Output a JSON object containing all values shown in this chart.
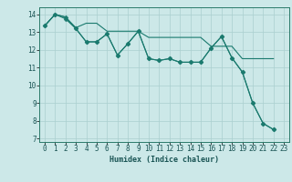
{
  "title": "",
  "xlabel": "Humidex (Indice chaleur)",
  "xlim": [
    -0.5,
    23.5
  ],
  "ylim": [
    6.8,
    14.4
  ],
  "xticks": [
    0,
    1,
    2,
    3,
    4,
    5,
    6,
    7,
    8,
    9,
    10,
    11,
    12,
    13,
    14,
    15,
    16,
    17,
    18,
    19,
    20,
    21,
    22,
    23
  ],
  "yticks": [
    7,
    8,
    9,
    10,
    11,
    12,
    13,
    14
  ],
  "bg_color": "#cce8e8",
  "grid_color": "#aacfcf",
  "line_color": "#1a7a6e",
  "line1_x": [
    0,
    1,
    2,
    3,
    4,
    5,
    6,
    7,
    8,
    9,
    10,
    11,
    12,
    13,
    14,
    15,
    16,
    17,
    18,
    19,
    20,
    21,
    22
  ],
  "line1_y": [
    13.35,
    14.0,
    13.85,
    13.2,
    12.45,
    12.45,
    12.9,
    11.7,
    12.35,
    13.05,
    11.5,
    11.4,
    11.5,
    11.3,
    11.3,
    11.3,
    12.1,
    12.75,
    11.55,
    10.75,
    9.0,
    7.85,
    7.5
  ],
  "line2_x": [
    0,
    1,
    2,
    3,
    4,
    5,
    6,
    7,
    8,
    9,
    10,
    11,
    12,
    13,
    14,
    15,
    16,
    17,
    18,
    19,
    20,
    21,
    22
  ],
  "line2_y": [
    13.35,
    14.0,
    13.85,
    13.25,
    13.5,
    13.5,
    13.05,
    13.05,
    13.05,
    13.05,
    12.7,
    12.7,
    12.7,
    12.7,
    12.7,
    12.7,
    12.2,
    12.2,
    12.2,
    11.5,
    11.5,
    11.5,
    11.5
  ],
  "line3_x": [
    0,
    1,
    2,
    3,
    4,
    5,
    6,
    7,
    8,
    9,
    10,
    11,
    12,
    13,
    14,
    15,
    16,
    17,
    18,
    19,
    20,
    21,
    22
  ],
  "line3_y": [
    13.35,
    14.0,
    13.75,
    13.2,
    12.45,
    12.45,
    12.9,
    11.7,
    12.35,
    13.05,
    11.5,
    11.4,
    11.5,
    11.3,
    11.3,
    11.3,
    12.1,
    12.75,
    11.55,
    10.75,
    9.0,
    7.85,
    7.5
  ],
  "markersize": 2.5,
  "lw": 0.8,
  "tick_fontsize": 5.5,
  "xlabel_fontsize": 6.0
}
